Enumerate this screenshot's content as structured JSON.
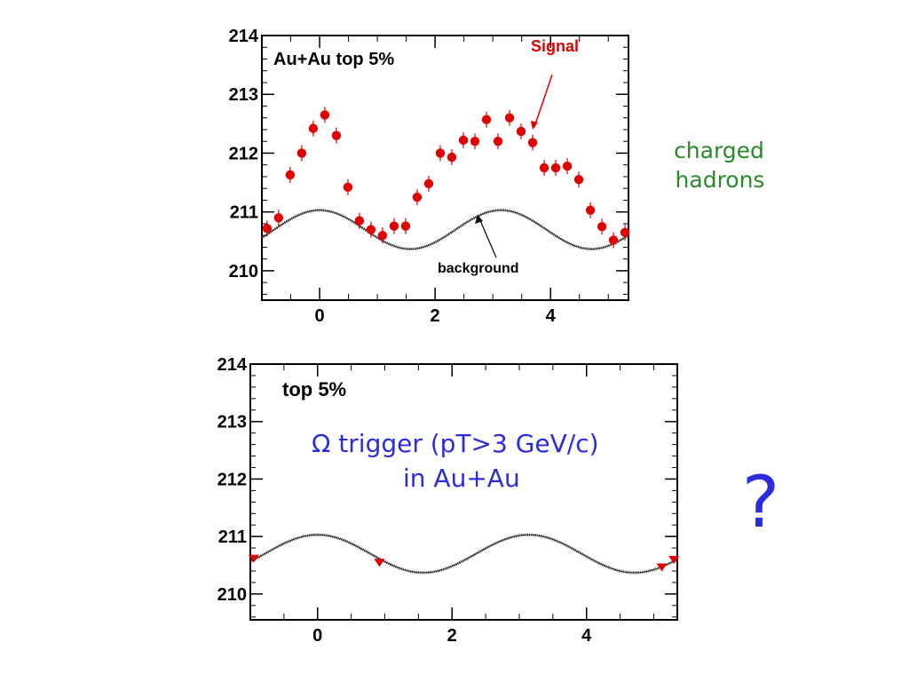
{
  "chart_data": [
    {
      "type": "scatter",
      "title": "Au+Au top 5%",
      "xlim": [
        -1,
        5.35
      ],
      "ylim": [
        209.5,
        214
      ],
      "xticks": [
        0,
        2,
        4
      ],
      "yticks": [
        210,
        211,
        212,
        213,
        214
      ],
      "grid": false,
      "series": [
        {
          "name": "Signal",
          "color": "#e00000",
          "x": [
            -0.91,
            -0.71,
            -0.51,
            -0.31,
            -0.11,
            0.09,
            0.29,
            0.49,
            0.69,
            0.89,
            1.09,
            1.29,
            1.49,
            1.69,
            1.89,
            2.09,
            2.29,
            2.49,
            2.69,
            2.89,
            3.09,
            3.29,
            3.49,
            3.69,
            3.89,
            4.09,
            4.29,
            4.49,
            4.69,
            4.89,
            5.09,
            5.29
          ],
          "y": [
            210.72,
            210.9,
            211.63,
            212.0,
            212.42,
            212.65,
            212.3,
            211.42,
            210.85,
            210.7,
            210.6,
            210.76,
            210.76,
            211.25,
            211.48,
            212.0,
            211.93,
            212.22,
            212.2,
            212.57,
            212.2,
            212.6,
            212.37,
            212.18,
            211.75,
            211.75,
            211.78,
            211.55,
            211.03,
            210.75,
            210.52,
            210.65
          ]
        },
        {
          "name": "background",
          "color": "#444444",
          "line": true,
          "function": "210.7 + 0.33*cos(2x)"
        }
      ],
      "annotations": [
        {
          "text": "Signal",
          "color": "#e00000"
        },
        {
          "text": "background",
          "color": "#000000"
        }
      ]
    },
    {
      "type": "scatter",
      "title": "top 5%",
      "xlim": [
        -1,
        5.35
      ],
      "ylim": [
        209.55,
        214
      ],
      "xticks": [
        0,
        2,
        4
      ],
      "yticks": [
        210,
        211,
        212,
        213,
        214
      ],
      "grid": false,
      "series": [
        {
          "color": "#e00000",
          "x": [
            -0.95,
            0.92,
            5.12,
            5.3
          ],
          "y": [
            210.62,
            210.55,
            210.47,
            210.6
          ]
        },
        {
          "color": "#444444",
          "line": true,
          "function": "210.7 + 0.33*cos(2x)"
        }
      ],
      "annotations": [
        {
          "text": "Ω  trigger (pT>3 GeV/c)",
          "color": "#2c2cdc"
        },
        {
          "text": "in Au+Au",
          "color": "#2c2cdc"
        }
      ]
    }
  ],
  "side_label": {
    "line1": "charged",
    "line2": "hadrons",
    "color": "#2a8a2a"
  },
  "question_mark": {
    "text": "?",
    "color": "#2c2cdc"
  }
}
